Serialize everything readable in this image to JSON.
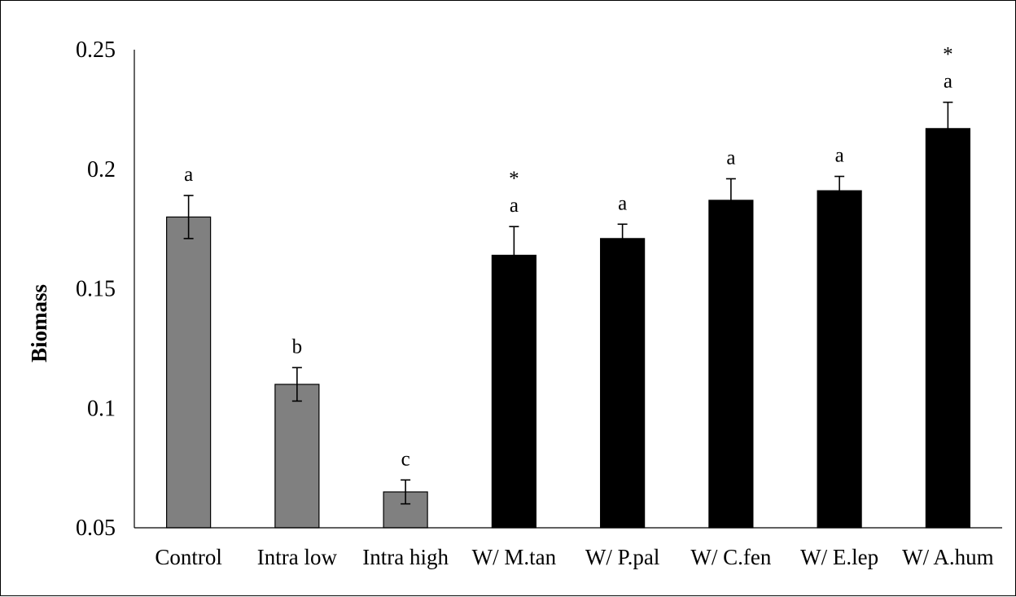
{
  "chart_data": {
    "type": "bar",
    "title": "",
    "xlabel": "",
    "ylabel": "Biomass",
    "ylim": [
      0.05,
      0.25
    ],
    "yticks": [
      "0.05",
      "0.1",
      "0.15",
      "0.2",
      "0.25"
    ],
    "grid": false,
    "legend": "none",
    "categories": [
      "Control",
      "Intra low",
      "Intra high",
      "W/ M.tan",
      "W/ P.pal",
      "W/ C.fen",
      "W/ E.lep",
      "W/ A.hum"
    ],
    "values": [
      0.18,
      0.11,
      0.065,
      0.164,
      0.171,
      0.187,
      0.191,
      0.217
    ],
    "errors": [
      0.009,
      0.007,
      0.005,
      0.012,
      0.006,
      0.009,
      0.006,
      0.011
    ],
    "letters": [
      "a",
      "b",
      "c",
      "a",
      "a",
      "a",
      "a",
      "a"
    ],
    "stars": [
      "",
      "",
      "",
      "*",
      "",
      "",
      "",
      "*"
    ],
    "colors": [
      "#808080",
      "#808080",
      "#808080",
      "#000000",
      "#000000",
      "#000000",
      "#000000",
      "#000000"
    ]
  }
}
